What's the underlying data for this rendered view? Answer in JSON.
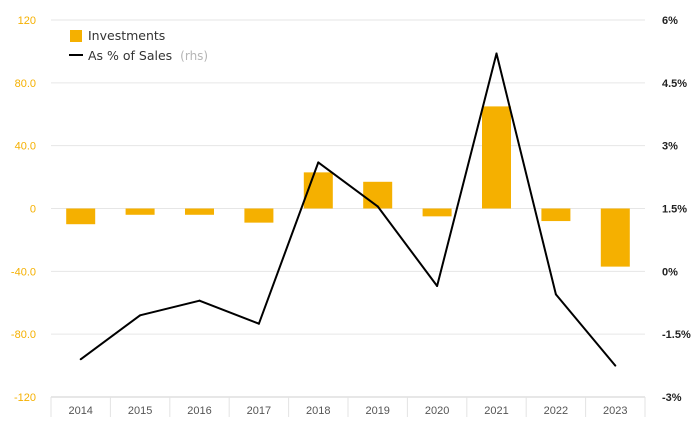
{
  "chart_data": {
    "type": "bar+line",
    "categories": [
      "2014",
      "2015",
      "2016",
      "2017",
      "2018",
      "2019",
      "2020",
      "2021",
      "2022",
      "2023"
    ],
    "series": [
      {
        "name": "Investments",
        "type": "bar",
        "axis": "left",
        "values": [
          -10,
          -4,
          -4,
          -9,
          23,
          17,
          -5,
          65,
          -8,
          -37
        ]
      },
      {
        "name": "As % of Sales",
        "type": "line",
        "axis": "right",
        "values": [
          -2.1,
          -1.05,
          -0.7,
          -1.25,
          2.6,
          1.55,
          -0.35,
          5.2,
          -0.55,
          -2.25
        ]
      }
    ],
    "left_axis": {
      "ylim": [
        -120,
        120
      ],
      "ticks": [
        120,
        80,
        40,
        0,
        -40,
        -80,
        -120
      ],
      "tick_labels": [
        "120",
        "80.0",
        "40.0",
        "0",
        "-40.0",
        "-80.0",
        "-120"
      ]
    },
    "right_axis": {
      "ylim": [
        -3,
        6
      ],
      "ticks": [
        6,
        4.5,
        3,
        1.5,
        0,
        -1.5,
        -3
      ],
      "tick_labels": [
        "6%",
        "4.5%",
        "3%",
        "1.5%",
        "0%",
        "-1.5%",
        "-3%"
      ]
    },
    "legend": {
      "position": "top-left",
      "items": [
        {
          "label": "Investments",
          "note": ""
        },
        {
          "label": "As % of Sales",
          "note": "(rhs)"
        }
      ]
    },
    "colors": {
      "bar": "#F5B000",
      "line": "#000000",
      "grid": "#e6e6e6",
      "left_ticks": "#F5B000",
      "right_ticks": "#222222",
      "x_ticks": "#555555"
    },
    "grid": true
  }
}
